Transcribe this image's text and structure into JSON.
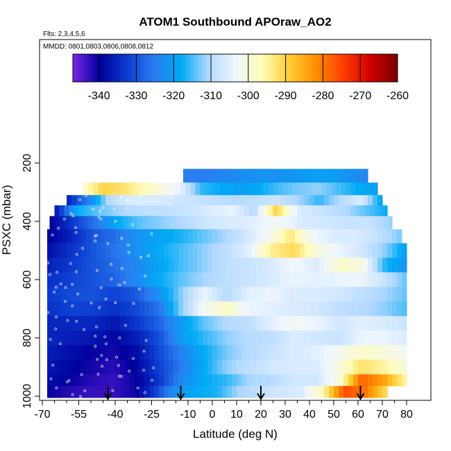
{
  "chart_data": {
    "type": "heatmap",
    "title": "ATOM1 Southbound APOraw_AO2",
    "subtitle_lines": [
      "Flts: 2,3,4,5,6",
      "MMDD: 0801,0803,0806,0808,0812"
    ],
    "xlabel": "Latitude (deg N)",
    "ylabel": "PSXC (mbar)",
    "xlim": [
      -70,
      82
    ],
    "ylim": [
      1010,
      140
    ],
    "y_reversed": true,
    "x_ticks": [
      -70,
      -55,
      -40,
      -25,
      -10,
      0,
      10,
      20,
      30,
      40,
      50,
      60,
      70,
      80
    ],
    "x_minor_ticks": [
      -65,
      -60,
      -50,
      -45,
      -35,
      -30,
      -20,
      -15,
      -5,
      5,
      15,
      25,
      35,
      45,
      55,
      65,
      75
    ],
    "y_ticks": [
      200,
      400,
      600,
      800,
      1000
    ],
    "grid": false,
    "legend": "top colorbar",
    "colorbar": {
      "min": -347,
      "max": -260,
      "tick_values": [
        -340,
        -330,
        -320,
        -310,
        -300,
        -290,
        -280,
        -270,
        -260
      ],
      "tick_labels": [
        "-340",
        "-330",
        "-320",
        "-310",
        "-300",
        "-290",
        "-280",
        "-270",
        "-260"
      ],
      "colors": [
        "#7a24e8",
        "#00009c",
        "#0c3cd0",
        "#2a7cf0",
        "#00aaf5",
        "#b0d8ff",
        "#f0f6ff",
        "#fffcb8",
        "#ffcc33",
        "#ff8c00",
        "#ff3c00",
        "#d00000",
        "#7a0000"
      ]
    },
    "arrow_latitudes": [
      -43,
      -13,
      20,
      61
    ],
    "layers": [
      {
        "p_top": 220,
        "p_bot": 267,
        "lat_start": -12,
        "lat_end": 64,
        "values": [
          -325,
          -325,
          -324,
          -323,
          -322,
          -322,
          -321,
          -320,
          -320,
          -322,
          -324
        ]
      },
      {
        "p_top": 267,
        "p_bot": 310,
        "lat_start": -53,
        "lat_end": 68,
        "values": [
          -298,
          -290,
          -292,
          -296,
          -300,
          -305,
          -316,
          -318,
          -320,
          -318,
          -315,
          -313,
          -312,
          -315,
          -318,
          -320
        ]
      },
      {
        "p_top": 310,
        "p_bot": 345,
        "lat_start": -60,
        "lat_end": 70,
        "values": [
          -336,
          -325,
          -310,
          -306,
          -306,
          -307,
          -308,
          -309,
          -310,
          -309,
          -308,
          -311,
          -316,
          -310,
          -306,
          -320
        ]
      },
      {
        "p_top": 345,
        "p_bot": 382,
        "lat_start": -65,
        "lat_end": 72,
        "values": [
          -338,
          -318,
          -314,
          -311,
          -309,
          -309,
          -308,
          -306,
          -304,
          -310,
          -290,
          -306,
          -308,
          -310,
          -314,
          -318
        ]
      },
      {
        "p_top": 382,
        "p_bot": 427,
        "lat_start": -67,
        "lat_end": 74,
        "values": [
          -340,
          -333,
          -326,
          -318,
          -314,
          -312,
          -310,
          -307,
          -306,
          -305,
          -302,
          -306,
          -307,
          -308,
          -308,
          -312
        ]
      },
      {
        "p_top": 427,
        "p_bot": 475,
        "lat_start": -68,
        "lat_end": 78,
        "values": [
          -340,
          -336,
          -330,
          -327,
          -322,
          -319,
          -317,
          -314,
          -311,
          -307,
          -302,
          -293,
          -303,
          -306,
          -306,
          -309,
          -313
        ]
      },
      {
        "p_top": 475,
        "p_bot": 525,
        "lat_start": -68,
        "lat_end": 80,
        "values": [
          -338,
          -334,
          -330,
          -326,
          -322,
          -318,
          -315,
          -312,
          -309,
          -305,
          -294,
          -291,
          -300,
          -304,
          -307,
          -312,
          -320
        ]
      },
      {
        "p_top": 525,
        "p_bot": 575,
        "lat_start": -68,
        "lat_end": 80,
        "values": [
          -336,
          -333,
          -330,
          -327,
          -323,
          -319,
          -315,
          -312,
          -309,
          -308,
          -306,
          -303,
          -306,
          -298,
          -300,
          -316,
          -322
        ]
      },
      {
        "p_top": 575,
        "p_bot": 625,
        "lat_start": -68,
        "lat_end": 80,
        "values": [
          -334,
          -332,
          -330,
          -328,
          -323,
          -318,
          -314,
          -311,
          -309,
          -308,
          -306,
          -304,
          -305,
          -304,
          -304,
          -308,
          -314
        ]
      },
      {
        "p_top": 625,
        "p_bot": 675,
        "lat_start": -68,
        "lat_end": 80,
        "values": [
          -333,
          -331,
          -330,
          -332,
          -329,
          -322,
          -312,
          -304,
          -310,
          -305,
          -304,
          -306,
          -306,
          -307,
          -309,
          -311,
          -314
        ]
      },
      {
        "p_top": 675,
        "p_bot": 725,
        "lat_start": -68,
        "lat_end": 80,
        "values": [
          -334,
          -332,
          -332,
          -334,
          -331,
          -326,
          -312,
          -302,
          -298,
          -304,
          -305,
          -306,
          -307,
          -309,
          -310,
          -312,
          -315
        ]
      },
      {
        "p_top": 725,
        "p_bot": 775,
        "lat_start": -68,
        "lat_end": 80,
        "values": [
          -335,
          -335,
          -335,
          -337,
          -333,
          -328,
          -320,
          -314,
          -310,
          -309,
          -305,
          -302,
          -304,
          -307,
          -305,
          -306,
          -308
        ]
      },
      {
        "p_top": 775,
        "p_bot": 825,
        "lat_start": -68,
        "lat_end": 80,
        "values": [
          -335,
          -336,
          -337,
          -339,
          -336,
          -330,
          -320,
          -316,
          -312,
          -310,
          -309,
          -306,
          -307,
          -308,
          -304,
          -304,
          -306
        ]
      },
      {
        "p_top": 825,
        "p_bot": 875,
        "lat_start": -68,
        "lat_end": 80,
        "values": [
          -336,
          -338,
          -340,
          -341,
          -338,
          -331,
          -324,
          -318,
          -313,
          -310,
          -308,
          -306,
          -305,
          -302,
          -298,
          -300,
          -302
        ]
      },
      {
        "p_top": 875,
        "p_bot": 925,
        "lat_start": -68,
        "lat_end": 80,
        "values": [
          -337,
          -339,
          -341,
          -342,
          -339,
          -332,
          -325,
          -318,
          -312,
          -309,
          -307,
          -306,
          -306,
          -300,
          -292,
          -295,
          -300
        ]
      },
      {
        "p_top": 925,
        "p_bot": 965,
        "lat_start": -68,
        "lat_end": 80,
        "values": [
          -338,
          -340,
          -342,
          -343,
          -340,
          -333,
          -323,
          -318,
          -316,
          -311,
          -310,
          -307,
          -307,
          -300,
          -278,
          -284,
          -296
        ]
      },
      {
        "p_top": 965,
        "p_bot": 1005,
        "lat_start": -68,
        "lat_end": 72,
        "values": [
          -340,
          -342,
          -343,
          -343,
          -341,
          -333,
          -322,
          -318,
          -317,
          -311,
          -309,
          -307,
          -306,
          -296,
          -276,
          -280,
          -292
        ]
      }
    ]
  }
}
